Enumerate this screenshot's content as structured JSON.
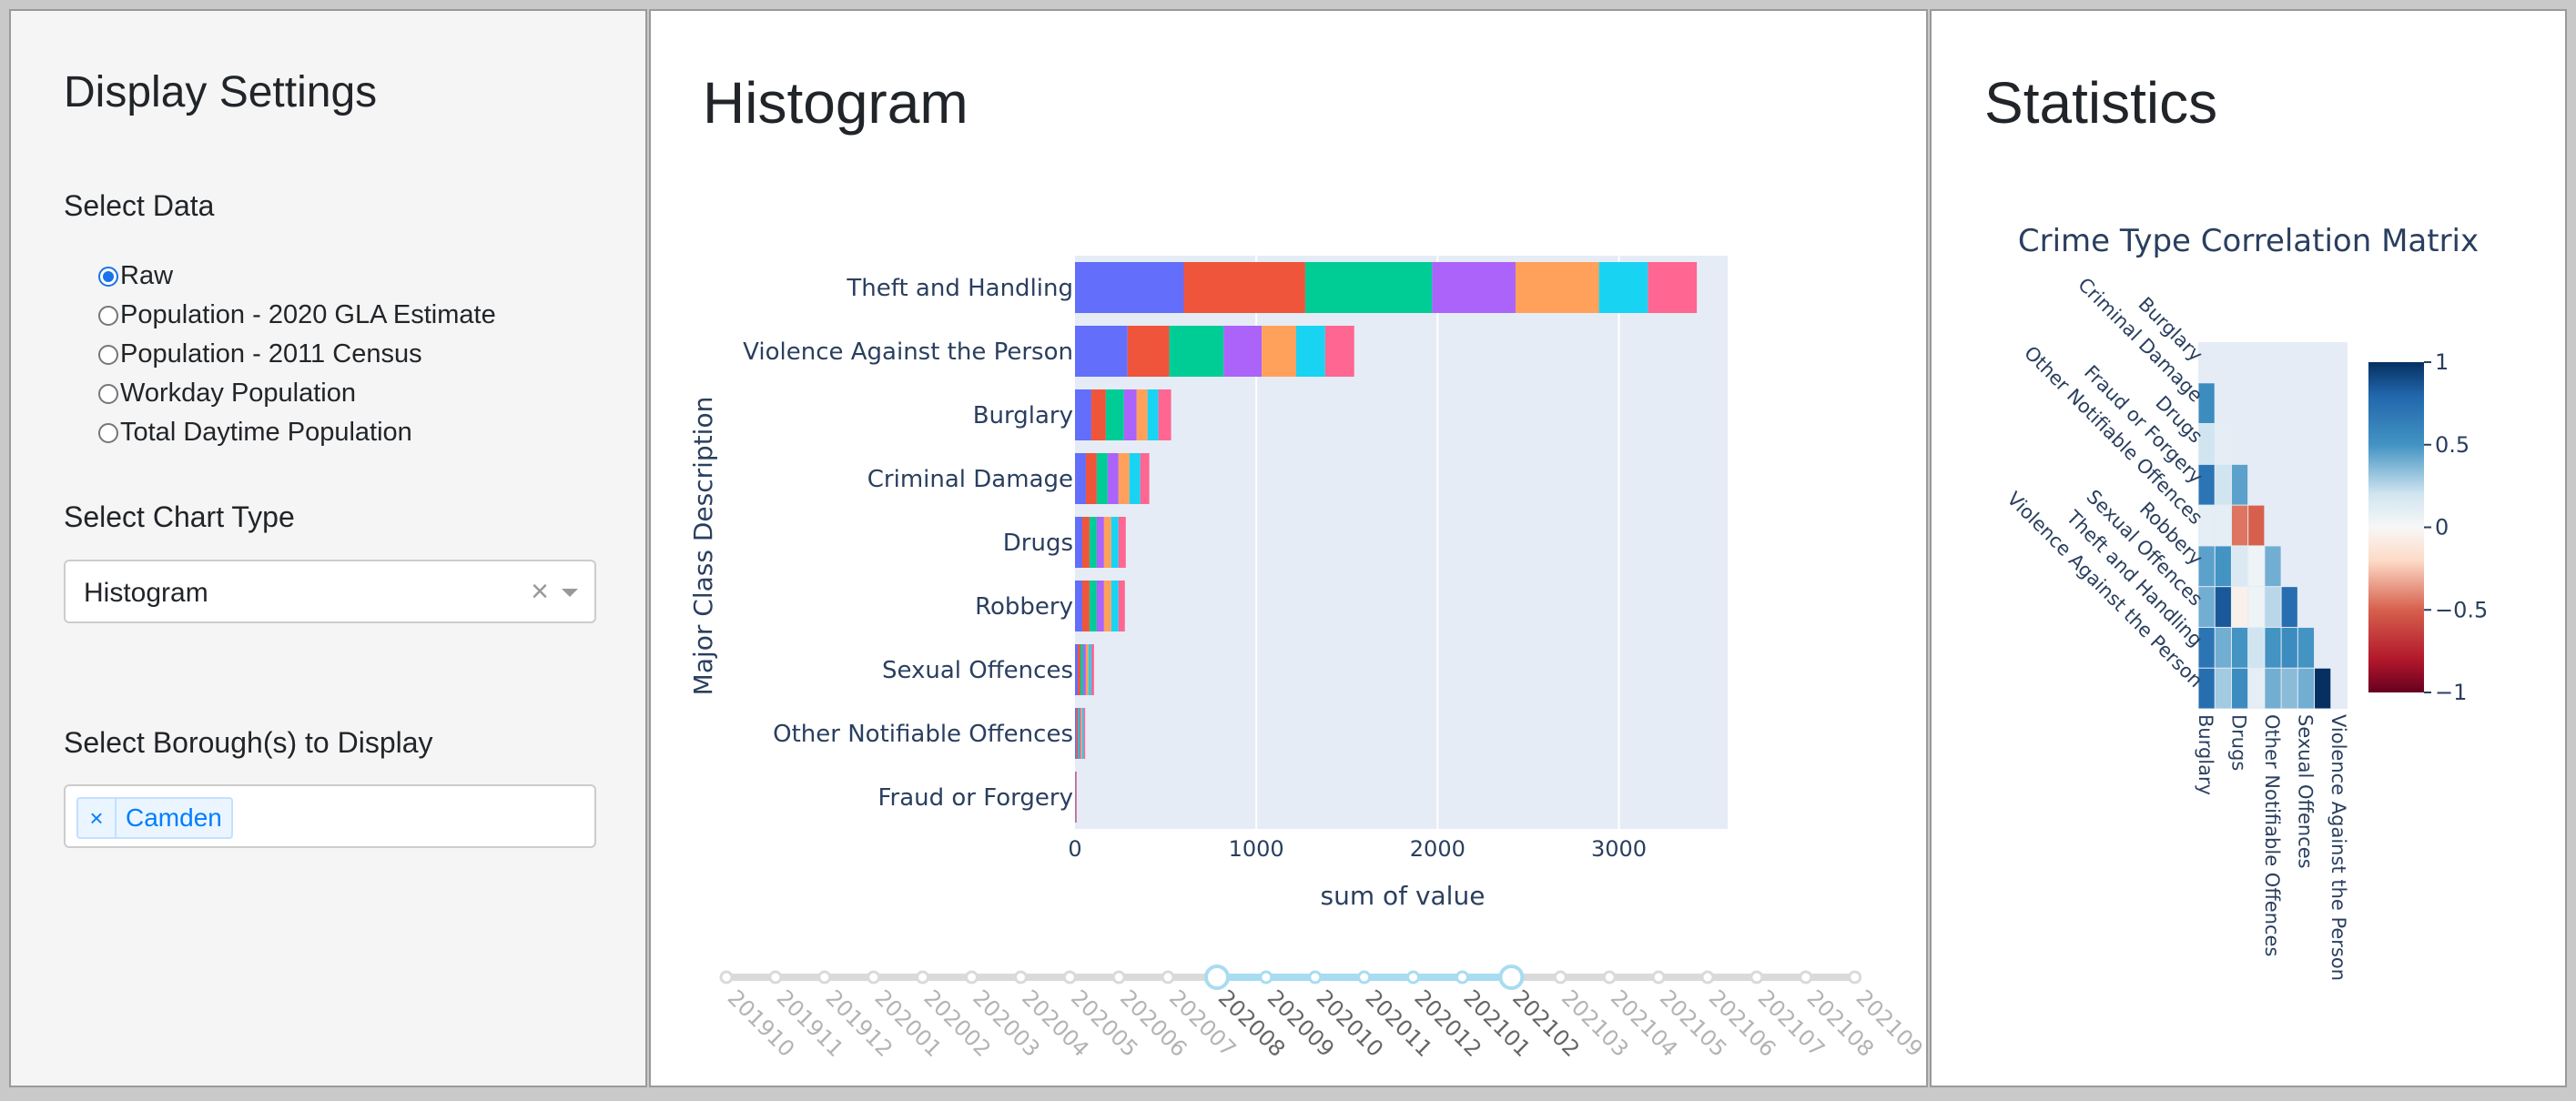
{
  "settings": {
    "title": "Display Settings",
    "select_data_label": "Select Data",
    "data_options": [
      {
        "label": "Raw",
        "checked": true
      },
      {
        "label": "Population - 2020 GLA Estimate",
        "checked": false
      },
      {
        "label": "Population - 2011 Census",
        "checked": false
      },
      {
        "label": "Workday Population",
        "checked": false
      },
      {
        "label": "Total Daytime Population",
        "checked": false
      }
    ],
    "chart_type_label": "Select Chart Type",
    "chart_type_value": "Histogram",
    "clear_symbol": "×",
    "borough_label": "Select Borough(s) to Display",
    "borough_tag_remove": "×",
    "borough_tags": [
      "Camden"
    ]
  },
  "histogram": {
    "title": "Histogram",
    "slider": {
      "ticks": [
        "201910",
        "201911",
        "201912",
        "202001",
        "202002",
        "202003",
        "202004",
        "202005",
        "202006",
        "202007",
        "202008",
        "202009",
        "202010",
        "202011",
        "202012",
        "202101",
        "202102",
        "202103",
        "202104",
        "202105",
        "202106",
        "202107",
        "202108",
        "202109"
      ],
      "range": [
        "202008",
        "202102"
      ]
    }
  },
  "statistics": {
    "title": "Statistics",
    "colorbar_ticks": [
      "1",
      "0.5",
      "0",
      "−0.5",
      "−1"
    ]
  },
  "colors": {
    "segments": [
      "#636efa",
      "#ef553b",
      "#00cc96",
      "#ab63fa",
      "#ffa15a",
      "#19d3f3",
      "#ff6692",
      "#b6e880",
      "#ff97ff",
      "#fecb52"
    ],
    "plot_bg": "#e5ecf6",
    "slider_accent": "#a8dcf0"
  },
  "chart_data": [
    {
      "type": "bar",
      "orientation": "horizontal",
      "stacked": true,
      "xlabel": "sum of value",
      "ylabel": "Major Class Description",
      "xlim": [
        0,
        3600
      ],
      "xticks": [
        0,
        1000,
        2000,
        3000
      ],
      "grid": true,
      "categories": [
        "Theft and Handling",
        "Violence Against the Person",
        "Burglary",
        "Criminal Damage",
        "Drugs",
        "Robbery",
        "Sexual Offences",
        "Other Notifiable Offences",
        "Fraud or Forgery"
      ],
      "segments": [
        [
          600,
          670,
          700,
          460,
          460,
          270,
          270
        ],
        [
          290,
          230,
          300,
          210,
          190,
          160,
          160
        ],
        [
          90,
          80,
          100,
          70,
          60,
          60,
          70
        ],
        [
          60,
          60,
          60,
          60,
          60,
          60,
          50
        ],
        [
          40,
          40,
          40,
          40,
          40,
          40,
          40
        ],
        [
          40,
          40,
          40,
          40,
          40,
          40,
          35
        ],
        [
          15,
          15,
          15,
          15,
          15,
          15,
          15
        ],
        [
          8,
          8,
          8,
          8,
          8,
          8,
          8
        ],
        [
          1,
          1,
          1,
          1,
          1,
          1,
          1
        ]
      ]
    },
    {
      "type": "heatmap",
      "title": "Crime Type Correlation Matrix",
      "colorscale": "RdBu",
      "zlim": [
        -1,
        1
      ],
      "rows": [
        "Burglary",
        "Criminal Damage",
        "Drugs",
        "Fraud or Forgery",
        "Other Notifiable Offences",
        "Robbery",
        "Sexual Offences",
        "Theft and Handling",
        "Violence Against the Person"
      ],
      "columns": [
        "Burglary",
        "Criminal Damage",
        "Drugs",
        "Fraud or Forgery",
        "Other Notifiable Offences",
        "Robbery",
        "Sexual Offences",
        "Theft and Handling",
        "Violence Against the Person"
      ],
      "x_tick_labels": [
        "Burglary",
        "Drugs",
        "Other Notifiable Offences",
        "Sexual Offences",
        "Violence Against the Person"
      ],
      "z": [
        [
          null,
          null,
          null,
          null,
          null,
          null,
          null,
          null,
          null
        ],
        [
          0.55,
          null,
          null,
          null,
          null,
          null,
          null,
          null,
          null
        ],
        [
          0.2,
          0.1,
          null,
          null,
          null,
          null,
          null,
          null,
          null
        ],
        [
          0.7,
          0.2,
          0.45,
          null,
          null,
          null,
          null,
          null,
          null
        ],
        [
          0.1,
          0.1,
          -0.45,
          -0.5,
          null,
          null,
          null,
          null,
          null
        ],
        [
          0.45,
          0.5,
          0.15,
          0.05,
          0.4,
          null,
          null,
          null,
          null
        ],
        [
          0.4,
          0.85,
          -0.05,
          0.05,
          0.25,
          0.75,
          null,
          null,
          null
        ],
        [
          0.7,
          0.4,
          0.5,
          0.2,
          0.5,
          0.55,
          0.5,
          null,
          null
        ],
        [
          0.75,
          0.3,
          0.55,
          0.1,
          0.4,
          0.35,
          0.4,
          1.0,
          null
        ]
      ]
    }
  ]
}
